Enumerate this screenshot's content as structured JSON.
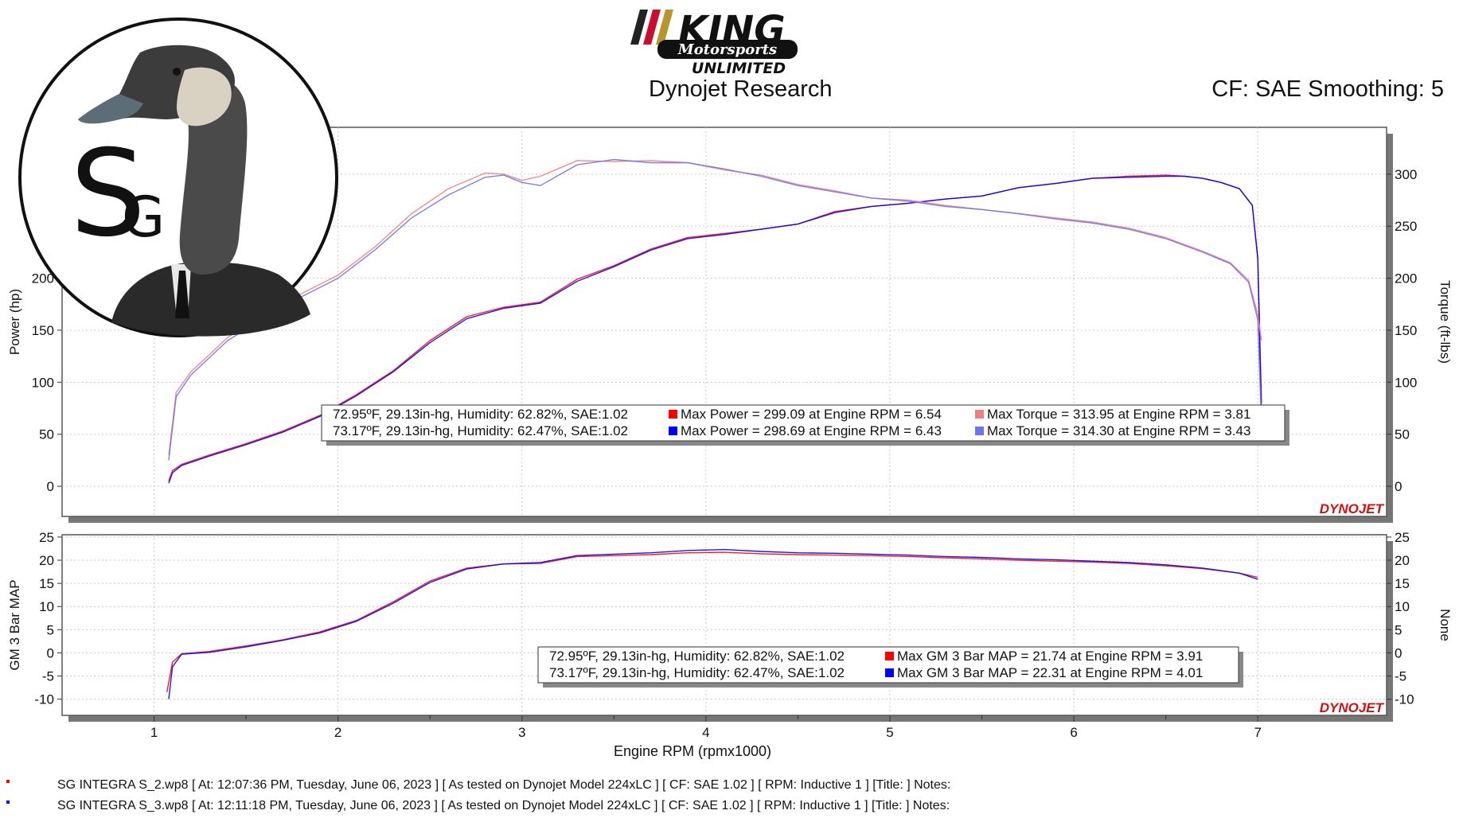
{
  "header": {
    "brand_top": "KING",
    "brand_mid": "Motorsports",
    "brand_bottom": "UNLIMITED",
    "subtitle": "Dynojet Research",
    "correction": "CF: SAE Smoothing: 5",
    "logo_letters": "SG"
  },
  "watermark": "DYNOJET",
  "colors": {
    "run1_power": "#ff0000",
    "run1_torque": "#f08080",
    "run2_power": "#0000ff",
    "run2_torque": "#7070f0",
    "run1_map": "#ff0000",
    "run2_map": "#0000ff",
    "grid": "#c8c8c8",
    "panel_border": "#555555",
    "logo_red": "#c8102e",
    "logo_gold": "#b8962e"
  },
  "chart_data": [
    {
      "type": "line",
      "name": "power-torque",
      "xlabel": "Engine RPM (rpmx1000)",
      "ylabel": "Power (hp)",
      "ylabel_right": "Torque (ft-lbs)",
      "xlim": [
        0.5,
        7.7
      ],
      "ylim": [
        -29,
        345
      ],
      "x_ticks": [
        1,
        2,
        3,
        4,
        5,
        6,
        7
      ],
      "y_ticks": [
        0,
        50,
        100,
        150,
        200,
        250,
        300
      ],
      "grid": true,
      "legend": {
        "rows": [
          {
            "conditions": "72.95ºF, 29.13in-hg, Humidity: 62.82%, SAE:1.02",
            "entries": [
              {
                "color": "#ff0000",
                "text": "Max Power = 299.09 at Engine RPM = 6.54"
              },
              {
                "color": "#f08080",
                "text": "Max Torque = 313.95 at Engine RPM = 3.81"
              }
            ]
          },
          {
            "conditions": "73.17ºF, 29.13in-hg, Humidity: 62.47%, SAE:1.02",
            "entries": [
              {
                "color": "#0000ff",
                "text": "Max Power = 298.69 at Engine RPM = 6.43"
              },
              {
                "color": "#7070f0",
                "text": "Max Torque = 314.30 at Engine RPM = 3.43"
              }
            ]
          }
        ]
      },
      "series": [
        {
          "color": "#ff0000",
          "axis": "left",
          "x": [
            1.08,
            1.1,
            1.15,
            1.3,
            1.5,
            1.7,
            1.9,
            2.1,
            2.3,
            2.5,
            2.7,
            2.9,
            3.1,
            3.3,
            3.5,
            3.7,
            3.9,
            4.1,
            4.3,
            4.5,
            4.7,
            4.9,
            5.1,
            5.3,
            5.5,
            5.7,
            5.9,
            6.1,
            6.3,
            6.5,
            6.6,
            6.7,
            6.8,
            6.9,
            6.97,
            7.0,
            7.02
          ],
          "y": [
            5,
            15,
            21,
            30,
            41,
            53,
            68,
            88,
            111,
            140,
            163,
            172,
            177,
            199,
            212,
            228,
            239,
            243,
            247,
            252,
            264,
            269,
            272,
            276,
            279,
            287,
            291,
            296,
            298,
            299,
            298,
            296,
            292,
            286,
            270,
            220,
            80
          ]
        },
        {
          "color": "#0000ff",
          "axis": "left",
          "x": [
            1.08,
            1.1,
            1.15,
            1.3,
            1.5,
            1.7,
            1.9,
            2.1,
            2.3,
            2.5,
            2.7,
            2.9,
            3.1,
            3.3,
            3.5,
            3.7,
            3.9,
            4.1,
            4.3,
            4.5,
            4.7,
            4.9,
            5.1,
            5.3,
            5.5,
            5.7,
            5.9,
            6.1,
            6.3,
            6.5,
            6.6,
            6.7,
            6.8,
            6.9,
            6.97,
            7.0,
            7.02
          ],
          "y": [
            3,
            13,
            20,
            29,
            40,
            52,
            67,
            87,
            110,
            138,
            161,
            171,
            176,
            197,
            211,
            227,
            238,
            242,
            247,
            252,
            263,
            269,
            272,
            276,
            279,
            287,
            291,
            296,
            297,
            298,
            298,
            296,
            292,
            286,
            270,
            218,
            70
          ]
        },
        {
          "color": "#f08080",
          "axis": "right",
          "x": [
            1.08,
            1.12,
            1.2,
            1.4,
            1.6,
            1.8,
            2.0,
            2.2,
            2.4,
            2.6,
            2.8,
            2.9,
            3.0,
            3.1,
            3.3,
            3.5,
            3.7,
            3.9,
            4.1,
            4.3,
            4.5,
            4.7,
            4.9,
            5.1,
            5.3,
            5.5,
            5.7,
            5.9,
            6.1,
            6.3,
            6.5,
            6.7,
            6.85,
            6.95,
            7.0,
            7.02
          ],
          "y": [
            30,
            90,
            110,
            143,
            165,
            185,
            203,
            230,
            262,
            286,
            301,
            300,
            294,
            298,
            313,
            312,
            313,
            311,
            304,
            299,
            290,
            284,
            277,
            275,
            270,
            266,
            262,
            258,
            254,
            248,
            239,
            226,
            215,
            198,
            165,
            140
          ]
        },
        {
          "color": "#7070f0",
          "axis": "right",
          "x": [
            1.08,
            1.12,
            1.2,
            1.4,
            1.6,
            1.8,
            2.0,
            2.2,
            2.4,
            2.6,
            2.8,
            2.9,
            3.0,
            3.1,
            3.3,
            3.5,
            3.7,
            3.9,
            4.1,
            4.3,
            4.5,
            4.7,
            4.9,
            5.1,
            5.3,
            5.5,
            5.7,
            5.9,
            6.1,
            6.3,
            6.5,
            6.7,
            6.85,
            6.95,
            7.0,
            7.02
          ],
          "y": [
            25,
            86,
            107,
            140,
            162,
            182,
            200,
            227,
            258,
            280,
            297,
            299,
            292,
            289,
            309,
            314,
            311,
            311,
            305,
            298,
            289,
            283,
            277,
            274,
            269,
            266,
            262,
            257,
            253,
            247,
            238,
            225,
            214,
            196,
            160,
            60
          ]
        }
      ]
    },
    {
      "type": "line",
      "name": "manifold-pressure",
      "xlabel": "Engine RPM (rpmx1000)",
      "ylabel": "GM 3 Bar MAP",
      "ylabel_right": "None",
      "xlim": [
        0.5,
        7.7
      ],
      "ylim": [
        -13.5,
        25.5
      ],
      "x_ticks": [
        1,
        2,
        3,
        4,
        5,
        6,
        7
      ],
      "y_ticks": [
        -10,
        -5,
        0,
        5,
        10,
        15,
        20,
        25
      ],
      "grid": true,
      "legend": {
        "rows": [
          {
            "conditions": "72.95ºF, 29.13in-hg, Humidity: 62.82%, SAE:1.02",
            "entries": [
              {
                "color": "#ff0000",
                "text": "Max GM 3 Bar MAP = 21.74 at Engine RPM = 3.91"
              }
            ]
          },
          {
            "conditions": "73.17ºF, 29.13in-hg, Humidity: 62.47%, SAE:1.02",
            "entries": [
              {
                "color": "#0000ff",
                "text": "Max GM 3 Bar MAP = 22.31 at Engine RPM = 4.01"
              }
            ]
          }
        ]
      },
      "series": [
        {
          "color": "#ff0000",
          "axis": "left",
          "x": [
            1.07,
            1.1,
            1.15,
            1.3,
            1.5,
            1.7,
            1.9,
            2.1,
            2.3,
            2.5,
            2.7,
            2.9,
            3.1,
            3.3,
            3.5,
            3.7,
            3.9,
            4.1,
            4.3,
            4.5,
            4.7,
            4.9,
            5.1,
            5.3,
            5.5,
            5.7,
            5.9,
            6.1,
            6.3,
            6.5,
            6.7,
            6.9,
            7.0
          ],
          "y": [
            -8.5,
            -2,
            -0.2,
            0.3,
            1.5,
            2.8,
            4.5,
            7,
            11,
            15.5,
            18.3,
            19.2,
            19.3,
            20.8,
            21,
            21.2,
            21.6,
            21.7,
            21.4,
            21.2,
            21.1,
            21,
            20.8,
            20.5,
            20.3,
            20,
            19.8,
            19.6,
            19.3,
            18.8,
            18.2,
            17.2,
            16.3
          ]
        },
        {
          "color": "#0000ff",
          "axis": "left",
          "x": [
            1.08,
            1.1,
            1.15,
            1.3,
            1.5,
            1.7,
            1.9,
            2.1,
            2.3,
            2.5,
            2.7,
            2.9,
            3.1,
            3.3,
            3.5,
            3.7,
            3.9,
            4.1,
            4.3,
            4.5,
            4.7,
            4.9,
            5.1,
            5.3,
            5.5,
            5.7,
            5.9,
            6.1,
            6.3,
            6.5,
            6.7,
            6.9,
            7.0
          ],
          "y": [
            -10,
            -3,
            -0.3,
            0.1,
            1.3,
            2.7,
            4.3,
            6.8,
            10.7,
            15.2,
            18.1,
            19.2,
            19.5,
            21,
            21.3,
            21.6,
            22.1,
            22.3,
            21.9,
            21.6,
            21.5,
            21.3,
            21.1,
            20.8,
            20.6,
            20.3,
            20.1,
            19.8,
            19.5,
            19,
            18.3,
            17.2,
            15.9
          ]
        }
      ]
    }
  ],
  "footer": [
    {
      "color": "#ff0000",
      "text": "SG INTEGRA S_2.wp8 [ At: 12:07:36 PM, Tuesday, June 06, 2023 ] [ As tested on Dynojet Model 224xLC ] [ CF: SAE 1.02 ] [ RPM: Inductive 1 ] [Title: ]  Notes:"
    },
    {
      "color": "#0000ff",
      "text": "SG INTEGRA S_3.wp8 [ At: 12:11:18 PM, Tuesday, June 06, 2023 ] [ As tested on Dynojet Model 224xLC ] [ CF: SAE 1.02 ] [ RPM: Inductive 1 ] [Title: ]  Notes:"
    }
  ]
}
